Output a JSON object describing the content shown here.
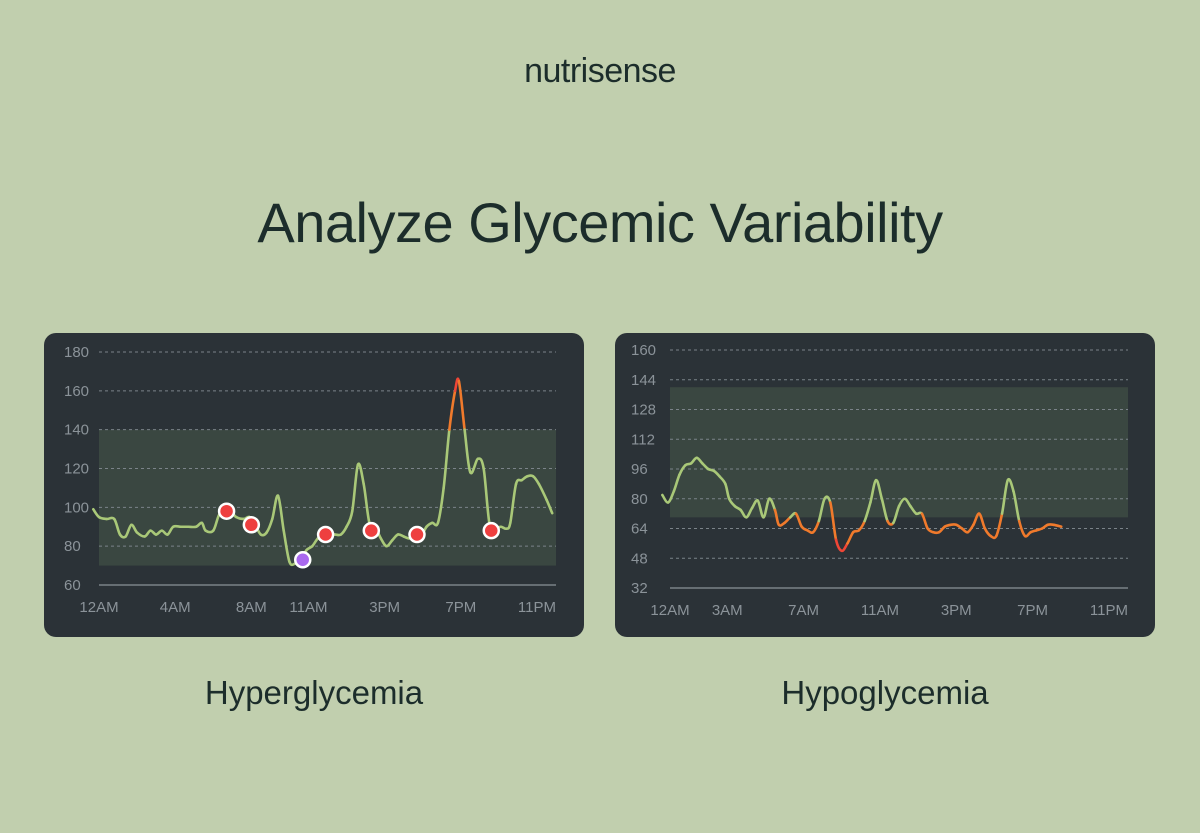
{
  "brand": "nutrisense",
  "title": "Analyze Glycemic Variability",
  "colors": {
    "background": "#c1cfae",
    "card": "#2b3237",
    "range_band": "#3a4741",
    "line_normal": "#a9c878",
    "line_warn": "#f07a2c",
    "line_alert": "#ef4636",
    "marker": "#ee3f3f",
    "marker_alt": "#a968ee"
  },
  "chart_data": [
    {
      "type": "line",
      "caption": "Hyperglycemia",
      "yticks": [
        60,
        80,
        100,
        120,
        140,
        160,
        180
      ],
      "ylim": [
        60,
        180
      ],
      "xlim": [
        0,
        24
      ],
      "xticks": [
        {
          "label": "12AM",
          "x": 0
        },
        {
          "label": "4AM",
          "x": 4
        },
        {
          "label": "8AM",
          "x": 8
        },
        {
          "label": "11AM",
          "x": 11
        },
        {
          "label": "3PM",
          "x": 15
        },
        {
          "label": "7PM",
          "x": 19
        },
        {
          "label": "11PM",
          "x": 23
        }
      ],
      "target_range": [
        70,
        140
      ],
      "grid": true,
      "series": [
        {
          "points": [
            [
              -0.3,
              99
            ],
            [
              0,
              95
            ],
            [
              0.4,
              94
            ],
            [
              0.8,
              94
            ],
            [
              1.1,
              86
            ],
            [
              1.4,
              85
            ],
            [
              1.7,
              91
            ],
            [
              2,
              87
            ],
            [
              2.4,
              85
            ],
            [
              2.7,
              88
            ],
            [
              3,
              86
            ],
            [
              3.3,
              88
            ],
            [
              3.6,
              86
            ],
            [
              3.9,
              90
            ],
            [
              4.3,
              90
            ],
            [
              4.7,
              90
            ],
            [
              5.1,
              90
            ],
            [
              5.4,
              92
            ],
            [
              5.6,
              88
            ],
            [
              6,
              88
            ],
            [
              6.3,
              96
            ],
            [
              6.6,
              98
            ],
            [
              6.9,
              98
            ],
            [
              7.2,
              95
            ],
            [
              7.6,
              94
            ],
            [
              7.9,
              95
            ],
            [
              8.2,
              91
            ],
            [
              8.5,
              86
            ],
            [
              8.8,
              87
            ],
            [
              9.1,
              94
            ],
            [
              9.4,
              106
            ],
            [
              9.7,
              88
            ],
            [
              10,
              72
            ],
            [
              10.3,
              71
            ],
            [
              10.6,
              73
            ],
            [
              10.9,
              78
            ],
            [
              11.2,
              80
            ],
            [
              11.5,
              84
            ],
            [
              11.8,
              85
            ],
            [
              12.1,
              86
            ],
            [
              12.4,
              86
            ],
            [
              12.7,
              86
            ],
            [
              13,
              90
            ],
            [
              13.3,
              98
            ],
            [
              13.6,
              122
            ],
            [
              13.9,
              112
            ],
            [
              14.2,
              92
            ],
            [
              14.5,
              90
            ],
            [
              14.8,
              84
            ],
            [
              15.1,
              80
            ],
            [
              15.4,
              83
            ],
            [
              15.7,
              86
            ],
            [
              16,
              85
            ],
            [
              16.3,
              84
            ],
            [
              16.6,
              86
            ],
            [
              16.9,
              85
            ],
            [
              17.2,
              90
            ],
            [
              17.5,
              92
            ],
            [
              17.8,
              92
            ],
            [
              18.1,
              110
            ],
            [
              18.4,
              140
            ],
            [
              18.7,
              160
            ],
            [
              18.9,
              165
            ],
            [
              19.2,
              140
            ],
            [
              19.5,
              118
            ],
            [
              19.9,
              125
            ],
            [
              20.2,
              120
            ],
            [
              20.5,
              92
            ],
            [
              20.8,
              89
            ],
            [
              21.1,
              90
            ],
            [
              21.4,
              89
            ],
            [
              21.6,
              92
            ],
            [
              21.9,
              112
            ],
            [
              22.2,
              114
            ],
            [
              22.5,
              116
            ],
            [
              22.8,
              116
            ],
            [
              23.1,
              112
            ],
            [
              23.5,
              104
            ],
            [
              23.8,
              97
            ]
          ]
        }
      ],
      "highlight": {
        "threshold": 140,
        "color": "#f07a2c",
        "peak_color": "#ef4636"
      },
      "markers": [
        {
          "x": 6.7,
          "y": 98,
          "color": "#ee3f3f"
        },
        {
          "x": 8,
          "y": 91,
          "color": "#ee3f3f"
        },
        {
          "x": 10.7,
          "y": 73,
          "color": "#a968ee"
        },
        {
          "x": 11.9,
          "y": 86,
          "color": "#ee3f3f"
        },
        {
          "x": 14.3,
          "y": 88,
          "color": "#ee3f3f"
        },
        {
          "x": 16.7,
          "y": 86,
          "color": "#ee3f3f"
        },
        {
          "x": 20.6,
          "y": 88,
          "color": "#ee3f3f"
        }
      ]
    },
    {
      "type": "line",
      "caption": "Hypoglycemia",
      "yticks": [
        32,
        48,
        64,
        80,
        96,
        112,
        128,
        144,
        160
      ],
      "ylim": [
        32,
        160
      ],
      "xlim": [
        0,
        24
      ],
      "xticks": [
        {
          "label": "12AM",
          "x": 0
        },
        {
          "label": "3AM",
          "x": 3
        },
        {
          "label": "7AM",
          "x": 7
        },
        {
          "label": "11AM",
          "x": 11
        },
        {
          "label": "3PM",
          "x": 15
        },
        {
          "label": "7PM",
          "x": 19
        },
        {
          "label": "11PM",
          "x": 23
        }
      ],
      "target_range": [
        70,
        140
      ],
      "grid": true,
      "series": [
        {
          "points": [
            [
              -0.4,
              82
            ],
            [
              -0.1,
              78
            ],
            [
              0.2,
              84
            ],
            [
              0.5,
              93
            ],
            [
              0.8,
              98
            ],
            [
              1.1,
              99
            ],
            [
              1.4,
              102
            ],
            [
              1.7,
              99
            ],
            [
              2,
              96
            ],
            [
              2.3,
              95
            ],
            [
              2.6,
              92
            ],
            [
              2.9,
              88
            ],
            [
              3.1,
              80
            ],
            [
              3.4,
              76
            ],
            [
              3.7,
              74
            ],
            [
              4,
              70
            ],
            [
              4.3,
              75
            ],
            [
              4.6,
              79
            ],
            [
              4.9,
              70
            ],
            [
              5.2,
              80
            ],
            [
              5.5,
              74
            ],
            [
              5.7,
              66
            ],
            [
              6,
              67
            ],
            [
              6.3,
              70
            ],
            [
              6.6,
              72
            ],
            [
              6.9,
              65
            ],
            [
              7.2,
              63
            ],
            [
              7.5,
              62
            ],
            [
              7.8,
              68
            ],
            [
              8.1,
              80
            ],
            [
              8.4,
              78
            ],
            [
              8.7,
              58
            ],
            [
              9,
              52
            ],
            [
              9.3,
              56
            ],
            [
              9.6,
              62
            ],
            [
              9.9,
              63
            ],
            [
              10.2,
              68
            ],
            [
              10.5,
              78
            ],
            [
              10.8,
              90
            ],
            [
              11.1,
              80
            ],
            [
              11.4,
              68
            ],
            [
              11.7,
              67
            ],
            [
              12,
              76
            ],
            [
              12.3,
              80
            ],
            [
              12.6,
              76
            ],
            [
              12.9,
              72
            ],
            [
              13.2,
              72
            ],
            [
              13.5,
              64
            ],
            [
              13.8,
              62
            ],
            [
              14.1,
              62
            ],
            [
              14.4,
              65
            ],
            [
              14.7,
              66
            ],
            [
              15,
              66
            ],
            [
              15.3,
              64
            ],
            [
              15.6,
              62
            ],
            [
              15.9,
              66
            ],
            [
              16.2,
              72
            ],
            [
              16.5,
              64
            ],
            [
              16.8,
              60
            ],
            [
              17.1,
              60
            ],
            [
              17.4,
              72
            ],
            [
              17.7,
              90
            ],
            [
              18,
              84
            ],
            [
              18.3,
              68
            ],
            [
              18.6,
              60
            ],
            [
              18.9,
              62
            ],
            [
              19.2,
              63
            ],
            [
              19.5,
              64
            ],
            [
              19.8,
              66
            ],
            [
              20.1,
              66
            ],
            [
              20.5,
              65
            ]
          ]
        }
      ],
      "highlight": {
        "threshold": 70,
        "color": "#f07a2c",
        "low_threshold": 56,
        "low_color": "#ef4636"
      }
    }
  ]
}
